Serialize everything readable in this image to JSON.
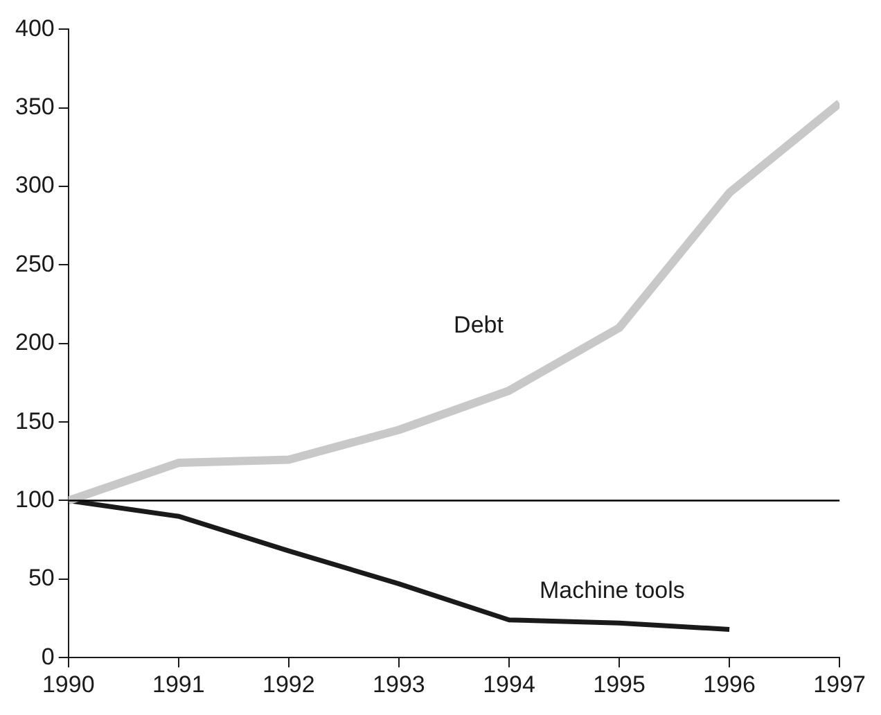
{
  "chart_data": {
    "type": "line",
    "x": [
      1990,
      1991,
      1992,
      1993,
      1994,
      1995,
      1996,
      1997
    ],
    "series": [
      {
        "name": "Debt",
        "color": "#c8c8c8",
        "values": [
          100,
          124,
          126,
          145,
          170,
          210,
          296,
          353
        ]
      },
      {
        "name": "Machine tools",
        "color": "#1a1a1a",
        "values": [
          100,
          90,
          68,
          47,
          24,
          22,
          18,
          null
        ]
      }
    ],
    "xlim": [
      1990,
      1997
    ],
    "xticks": [
      1990,
      1991,
      1992,
      1993,
      1994,
      1995,
      1996,
      1997
    ],
    "ylim": [
      0,
      400
    ],
    "yticks": [
      0,
      50,
      100,
      150,
      200,
      250,
      300,
      350,
      400
    ],
    "ref_lines": [
      {
        "axis": "y",
        "value": 100,
        "color": "#000000"
      }
    ],
    "grid": false,
    "legend": false,
    "marker": "none",
    "line_style": "solid"
  }
}
